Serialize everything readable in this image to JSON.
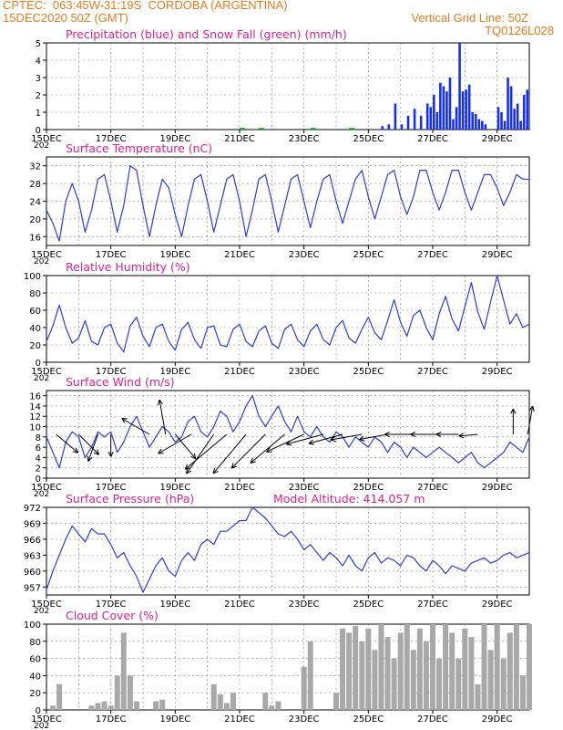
{
  "header": {
    "line1": "CPTEC:  063:45W-31:19S  CORDOBA (ARGENTINA)",
    "line2": "15DEC2020 50Z (GMT)",
    "grid_note": "Vertical Grid Line: 50Z",
    "code": "TQ0126L028"
  },
  "colors": {
    "header": "#e87a1e",
    "title": "#e0208a",
    "precip": "#1530f0",
    "snow": "#19b019",
    "line": "#2a3ce0",
    "cloud": "#a8a8a8",
    "grid": "#888888"
  },
  "x_ticks": [
    "15DEC",
    "17DEC",
    "19DEC",
    "21DEC",
    "23DEC",
    "25DEC",
    "27DEC",
    "29DEC"
  ],
  "x_cut_label": "202",
  "chart_data": [
    {
      "type": "bar",
      "title": "Precipitation (blue) and Snow Fall (green) (mm/h)",
      "ylim": [
        0,
        5
      ],
      "yticks": [
        "0",
        "1",
        "2",
        "3",
        "4",
        "5"
      ],
      "x_days": [
        10.4,
        10.6,
        10.8,
        11.0,
        11.2,
        11.4,
        11.6,
        11.8,
        11.9,
        12.0,
        12.1,
        12.2,
        12.3,
        12.4,
        12.5,
        12.6,
        12.7,
        12.8,
        12.9,
        13.0,
        13.1,
        13.2,
        13.3,
        13.4,
        13.5,
        13.6,
        14.0,
        14.1,
        14.2,
        14.3,
        14.4,
        14.5,
        14.6,
        14.7,
        14.8,
        14.9
      ],
      "values": [
        0.2,
        0.3,
        1.5,
        0.3,
        0.8,
        1.2,
        0.8,
        1.5,
        1.3,
        2.0,
        1.0,
        2.7,
        2.5,
        2.2,
        3.0,
        0.6,
        1.3,
        5.0,
        2.2,
        2.3,
        2.6,
        1.0,
        0.9,
        0.6,
        0.5,
        0.3,
        1.3,
        1.0,
        0.5,
        3.0,
        2.5,
        1.2,
        1.5,
        0.5,
        2.0,
        2.3
      ],
      "snow_values": [
        0.1,
        0.1,
        0.1,
        0.1
      ]
    },
    {
      "type": "line",
      "title": "Surface Temperature (nC)",
      "ylim": [
        14,
        34
      ],
      "yticks": [
        "16",
        "20",
        "24",
        "28",
        "32"
      ],
      "x": [
        0.0,
        0.2,
        0.4,
        0.6,
        0.8,
        1.0,
        1.2,
        1.4,
        1.6,
        1.8,
        2.0,
        2.2,
        2.4,
        2.6,
        2.8,
        3.0,
        3.2,
        3.4,
        3.6,
        3.8,
        4.0,
        4.2,
        4.4,
        4.6,
        4.8,
        5.0,
        5.2,
        5.4,
        5.6,
        5.8,
        6.0,
        6.2,
        6.4,
        6.6,
        6.8,
        7.0,
        7.2,
        7.4,
        7.6,
        7.8,
        8.0,
        8.2,
        8.4,
        8.6,
        8.8,
        9.0,
        9.2,
        9.4,
        9.6,
        9.8,
        10.0,
        10.2,
        10.4,
        10.6,
        10.8,
        11.0,
        11.2,
        11.4,
        11.6,
        11.8,
        12.0,
        12.2,
        12.4,
        12.6,
        12.8,
        13.0,
        13.2,
        13.4,
        13.6,
        13.8,
        14.0,
        14.2,
        14.4,
        14.6,
        14.8,
        15.0
      ],
      "values": [
        22,
        19,
        15,
        24,
        28,
        24,
        17,
        22,
        29,
        30,
        24,
        17,
        23,
        32,
        31,
        23,
        16,
        23,
        29,
        27,
        21,
        16,
        23,
        29,
        30,
        24,
        17,
        23,
        29,
        30,
        24,
        16,
        22,
        29,
        30,
        24,
        17,
        23,
        29,
        30,
        24,
        18,
        24,
        29,
        30,
        24,
        19,
        24,
        29,
        31,
        25,
        20,
        25,
        30,
        31,
        25,
        21,
        25,
        31,
        31,
        26,
        22,
        26,
        31,
        31,
        26,
        22,
        26,
        30,
        30,
        27,
        23,
        26,
        30,
        29,
        29
      ]
    },
    {
      "type": "line",
      "title": "Relative Humidity (%)",
      "ylim": [
        0,
        100
      ],
      "yticks": [
        "0",
        "20",
        "40",
        "60",
        "80",
        "100"
      ],
      "x": [
        0.0,
        0.2,
        0.4,
        0.6,
        0.8,
        1.0,
        1.2,
        1.4,
        1.6,
        1.8,
        2.0,
        2.2,
        2.4,
        2.6,
        2.8,
        3.0,
        3.2,
        3.4,
        3.6,
        3.8,
        4.0,
        4.2,
        4.4,
        4.6,
        4.8,
        5.0,
        5.2,
        5.4,
        5.6,
        5.8,
        6.0,
        6.2,
        6.4,
        6.6,
        6.8,
        7.0,
        7.2,
        7.4,
        7.6,
        7.8,
        8.0,
        8.2,
        8.4,
        8.6,
        8.8,
        9.0,
        9.2,
        9.4,
        9.6,
        9.8,
        10.0,
        10.2,
        10.4,
        10.6,
        10.8,
        11.0,
        11.2,
        11.4,
        11.6,
        11.8,
        12.0,
        12.2,
        12.4,
        12.6,
        12.8,
        13.0,
        13.2,
        13.4,
        13.6,
        13.8,
        14.0,
        14.2,
        14.4,
        14.6,
        14.8,
        15.0
      ],
      "values": [
        24,
        42,
        66,
        40,
        22,
        28,
        48,
        24,
        20,
        40,
        44,
        22,
        12,
        42,
        52,
        30,
        18,
        40,
        44,
        24,
        14,
        38,
        46,
        26,
        16,
        40,
        42,
        20,
        18,
        38,
        44,
        24,
        18,
        36,
        42,
        22,
        16,
        38,
        44,
        26,
        18,
        36,
        44,
        26,
        20,
        40,
        48,
        28,
        22,
        38,
        52,
        34,
        26,
        48,
        72,
        46,
        30,
        54,
        60,
        40,
        26,
        56,
        76,
        50,
        36,
        64,
        92,
        58,
        38,
        70,
        100,
        72,
        44,
        56,
        40,
        44
      ]
    },
    {
      "type": "line",
      "title": "Surface Wind (m/s)",
      "ylim": [
        0,
        17
      ],
      "yticks": [
        "0",
        "2",
        "4",
        "6",
        "8",
        "10",
        "12",
        "14",
        "16"
      ],
      "x": [
        0.0,
        0.2,
        0.4,
        0.6,
        0.8,
        1.0,
        1.2,
        1.4,
        1.6,
        1.8,
        2.0,
        2.2,
        2.4,
        2.6,
        2.8,
        3.0,
        3.2,
        3.4,
        3.6,
        3.8,
        4.0,
        4.2,
        4.4,
        4.6,
        4.8,
        5.0,
        5.2,
        5.4,
        5.6,
        5.8,
        6.0,
        6.2,
        6.4,
        6.6,
        6.8,
        7.0,
        7.2,
        7.4,
        7.6,
        7.8,
        8.0,
        8.2,
        8.4,
        8.6,
        8.8,
        9.0,
        9.2,
        9.4,
        9.6,
        9.8,
        10.0,
        10.2,
        10.4,
        10.6,
        10.8,
        11.0,
        11.2,
        11.4,
        11.6,
        11.8,
        12.0,
        12.2,
        12.4,
        12.6,
        12.8,
        13.0,
        13.2,
        13.4,
        13.6,
        13.8,
        14.0,
        14.2,
        14.4,
        14.6,
        14.8,
        15.0
      ],
      "values": [
        8,
        5,
        2,
        7,
        9,
        8,
        4,
        6,
        9,
        8,
        9,
        5,
        7,
        10,
        12,
        9,
        6,
        8,
        10,
        9,
        7,
        8,
        11,
        12,
        9,
        8,
        10,
        13,
        12,
        9,
        11,
        14,
        16,
        12,
        10,
        12,
        14,
        11,
        9,
        12,
        9,
        8,
        10,
        8,
        7,
        9,
        8,
        6,
        8,
        7,
        6,
        8,
        7,
        5,
        7,
        6,
        4,
        6,
        5,
        4,
        5,
        6,
        5,
        4,
        3,
        4,
        5,
        3,
        2,
        3,
        4,
        5,
        7,
        6,
        5,
        8
      ],
      "arrows": [
        {
          "day": 0.3,
          "dir_deg": 130,
          "len": 0.45
        },
        {
          "day": 1.0,
          "dir_deg": 135,
          "len": 0.45
        },
        {
          "day": 1.6,
          "dir_deg": 200,
          "len": 0.45
        },
        {
          "day": 2.0,
          "dir_deg": 180,
          "len": 0.35
        },
        {
          "day": 3.2,
          "dir_deg": 300,
          "len": 0.5
        },
        {
          "day": 3.7,
          "dir_deg": 350,
          "len": 0.55
        },
        {
          "day": 4.0,
          "dir_deg": 140,
          "len": 0.5
        },
        {
          "day": 4.5,
          "dir_deg": 240,
          "len": 0.6
        },
        {
          "day": 5.2,
          "dir_deg": 215,
          "len": 0.75
        },
        {
          "day": 5.6,
          "dir_deg": 230,
          "len": 0.85
        },
        {
          "day": 6.2,
          "dir_deg": 220,
          "len": 0.8
        },
        {
          "day": 6.8,
          "dir_deg": 225,
          "len": 0.75
        },
        {
          "day": 7.4,
          "dir_deg": 230,
          "len": 0.7
        },
        {
          "day": 8.0,
          "dir_deg": 245,
          "len": 0.65
        },
        {
          "day": 8.6,
          "dir_deg": 255,
          "len": 0.6
        },
        {
          "day": 9.2,
          "dir_deg": 255,
          "len": 0.55
        },
        {
          "day": 9.8,
          "dir_deg": 260,
          "len": 0.5
        },
        {
          "day": 10.6,
          "dir_deg": 260,
          "len": 0.45
        },
        {
          "day": 11.4,
          "dir_deg": 270,
          "len": 0.45
        },
        {
          "day": 12.1,
          "dir_deg": 270,
          "len": 0.4
        },
        {
          "day": 12.8,
          "dir_deg": 270,
          "len": 0.35
        },
        {
          "day": 13.4,
          "dir_deg": 265,
          "len": 0.3
        },
        {
          "day": 14.5,
          "dir_deg": 0,
          "len": 0.4
        },
        {
          "day": 14.95,
          "dir_deg": 10,
          "len": 0.45
        }
      ]
    },
    {
      "type": "line",
      "title": "Surface Pressure (hPa)",
      "subtitle": "Model Altitude: 414.057 m",
      "ylim": [
        955.5,
        972
      ],
      "yticks": [
        "957",
        "960",
        "963",
        "966",
        "969",
        "972"
      ],
      "x": [
        0.0,
        0.2,
        0.4,
        0.6,
        0.8,
        1.0,
        1.2,
        1.4,
        1.6,
        1.8,
        2.0,
        2.2,
        2.4,
        2.6,
        2.8,
        3.0,
        3.2,
        3.4,
        3.6,
        3.8,
        4.0,
        4.2,
        4.4,
        4.6,
        4.8,
        5.0,
        5.2,
        5.4,
        5.6,
        5.8,
        6.0,
        6.2,
        6.4,
        6.6,
        6.8,
        7.0,
        7.2,
        7.4,
        7.6,
        7.8,
        8.0,
        8.2,
        8.4,
        8.6,
        8.8,
        9.0,
        9.2,
        9.4,
        9.6,
        9.8,
        10.0,
        10.2,
        10.4,
        10.6,
        10.8,
        11.0,
        11.2,
        11.4,
        11.6,
        11.8,
        12.0,
        12.2,
        12.4,
        12.6,
        12.8,
        13.0,
        13.2,
        13.4,
        13.6,
        13.8,
        14.0,
        14.2,
        14.4,
        14.6,
        14.8,
        15.0
      ],
      "values": [
        956.5,
        960,
        963,
        966,
        968.5,
        967,
        965.5,
        968,
        967,
        967,
        965,
        962.5,
        963.5,
        961,
        959,
        956,
        958.5,
        961,
        962.5,
        960,
        959,
        962,
        963.5,
        962,
        965,
        966,
        965,
        967.5,
        967.5,
        968.5,
        969.5,
        969.5,
        972,
        971,
        970,
        968.5,
        967,
        966.5,
        967.5,
        966,
        964,
        965,
        963.5,
        962,
        963.5,
        962.5,
        961,
        963,
        961,
        960,
        962.5,
        963.5,
        961.5,
        962.5,
        962,
        961,
        963,
        962.5,
        961,
        960,
        962,
        961,
        959.5,
        961,
        960.5,
        960,
        961.5,
        962,
        962.5,
        961.5,
        962,
        963,
        963.5,
        962.5,
        963,
        963.5
      ]
    },
    {
      "type": "bar",
      "title": "Cloud Cover (%)",
      "ylim": [
        0,
        100
      ],
      "yticks": [
        "0",
        "20",
        "40",
        "60",
        "80",
        "100"
      ],
      "x": [
        0.0,
        0.2,
        0.4,
        0.6,
        0.8,
        1.0,
        1.2,
        1.4,
        1.6,
        1.8,
        2.0,
        2.2,
        2.4,
        2.6,
        2.8,
        3.0,
        3.2,
        3.4,
        3.6,
        3.8,
        4.0,
        4.2,
        4.4,
        4.6,
        4.8,
        5.0,
        5.2,
        5.4,
        5.6,
        5.8,
        6.0,
        6.2,
        6.4,
        6.6,
        6.8,
        7.0,
        7.2,
        7.4,
        7.6,
        7.8,
        8.0,
        8.2,
        8.4,
        8.6,
        8.8,
        9.0,
        9.2,
        9.4,
        9.6,
        9.8,
        10.0,
        10.2,
        10.4,
        10.6,
        10.8,
        11.0,
        11.2,
        11.4,
        11.6,
        11.8,
        12.0,
        12.2,
        12.4,
        12.6,
        12.8,
        13.0,
        13.2,
        13.4,
        13.6,
        13.8,
        14.0,
        14.2,
        14.4,
        14.6,
        14.8,
        15.0
      ],
      "values": [
        0,
        5,
        30,
        0,
        0,
        0,
        0,
        5,
        8,
        10,
        5,
        40,
        90,
        40,
        10,
        0,
        0,
        10,
        12,
        0,
        0,
        0,
        0,
        0,
        0,
        0,
        30,
        18,
        8,
        20,
        0,
        0,
        0,
        0,
        20,
        5,
        10,
        0,
        0,
        0,
        50,
        80,
        0,
        0,
        0,
        20,
        95,
        90,
        98,
        80,
        95,
        70,
        100,
        85,
        60,
        90,
        100,
        70,
        95,
        80,
        100,
        60,
        100,
        90,
        60,
        95,
        85,
        30,
        100,
        70,
        100,
        60,
        90,
        100,
        40,
        100
      ]
    }
  ]
}
